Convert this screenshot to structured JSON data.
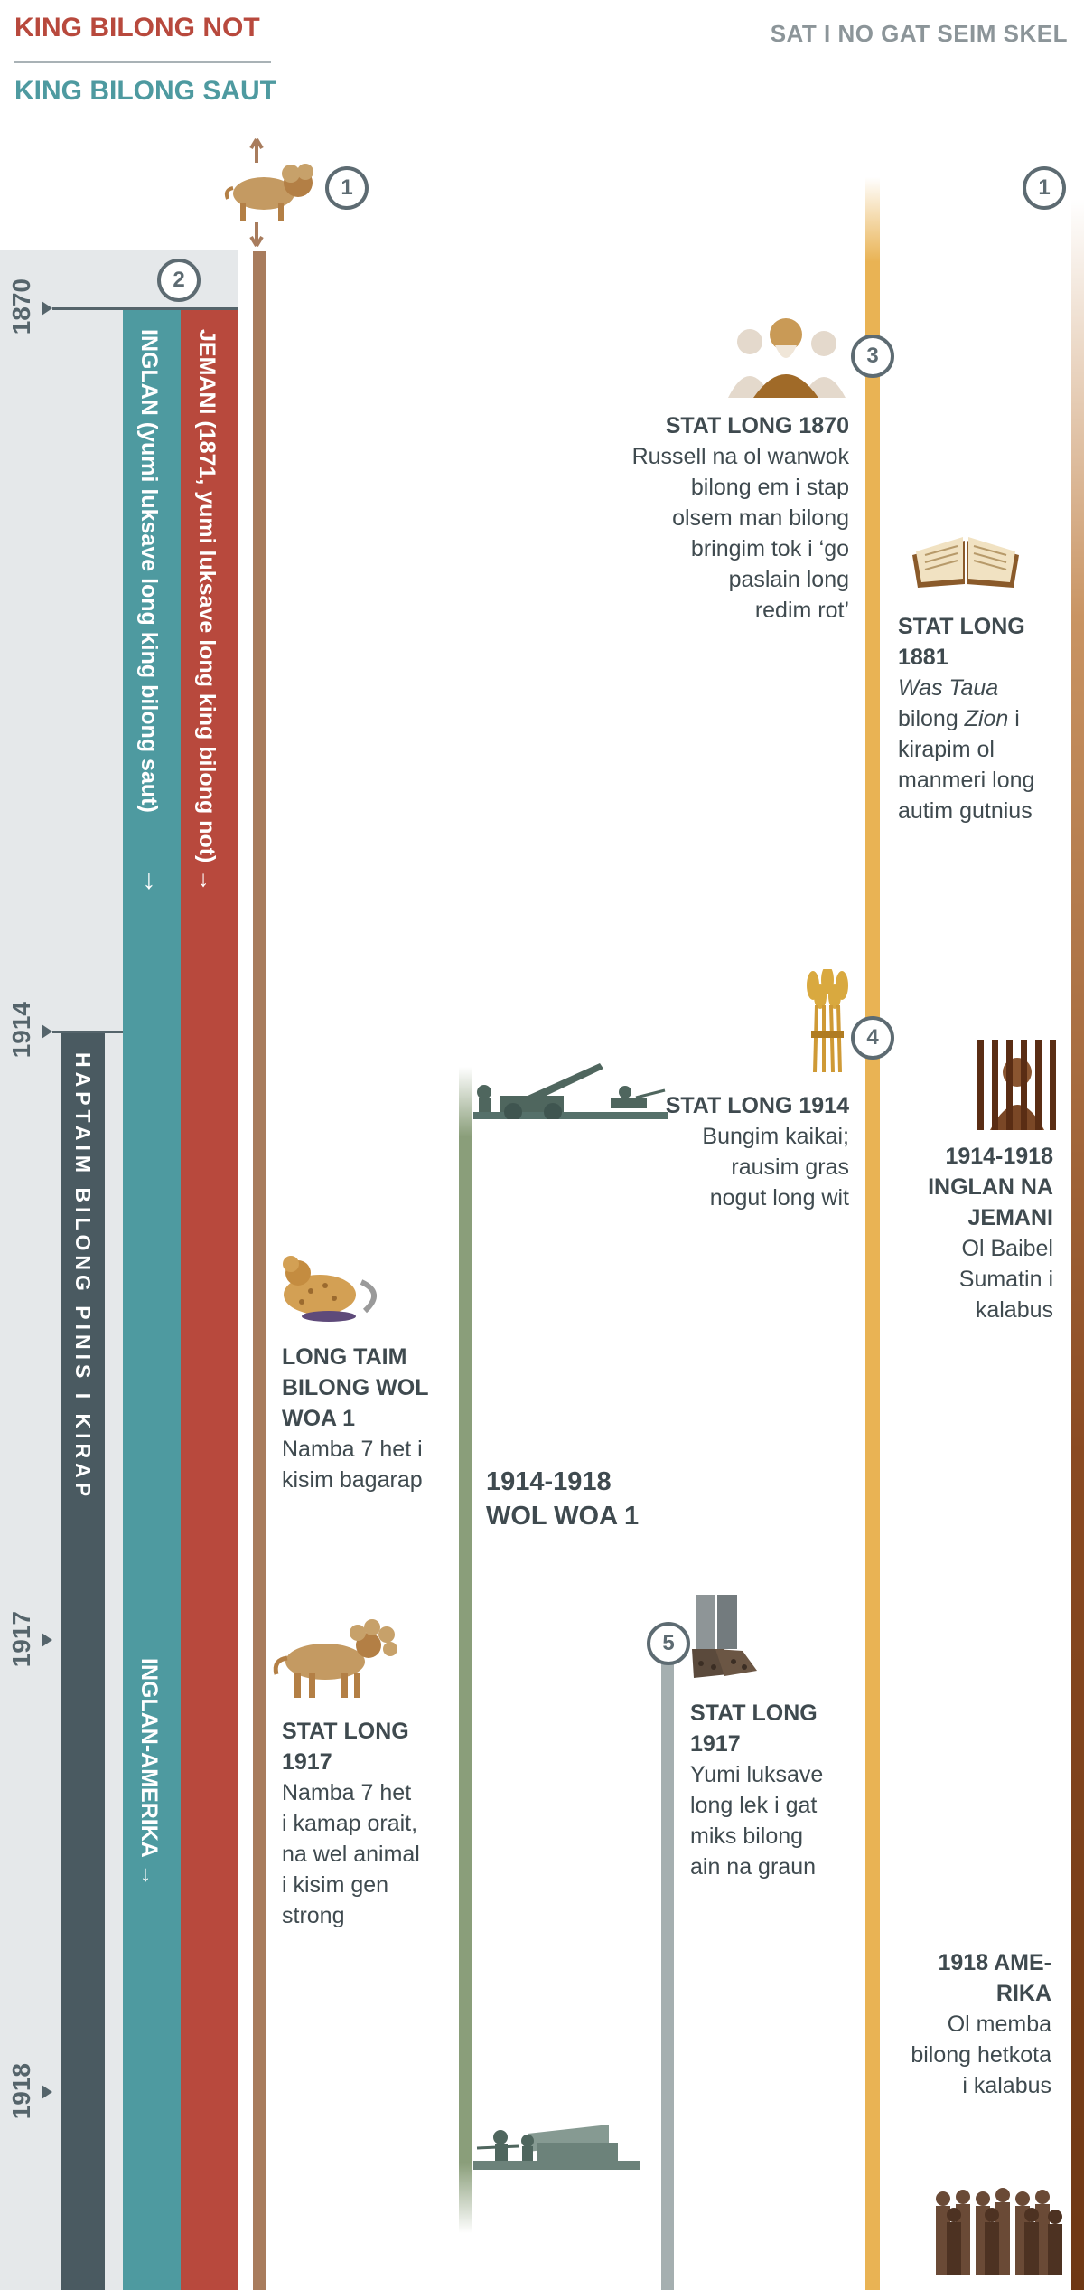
{
  "header": {
    "king_north": "KING BILONG NOT",
    "king_south": "KING BILONG SAUT",
    "note": "SAT I NO GAT SEIM SKEL"
  },
  "colors": {
    "north_red": "#b8493d",
    "south_teal": "#4e9aa0",
    "slate": "#4a5a61",
    "beast_brown": "#a87c5d",
    "ww1_green": "#8a9e7a",
    "gold": "#e9b354",
    "iron_gray": "#a5afb0",
    "bible_brown": "#8a4a22"
  },
  "markers": [
    "1",
    "2",
    "3",
    "4",
    "5"
  ],
  "years": [
    "1870",
    "1914",
    "1917",
    "1918"
  ],
  "bars": {
    "jemani": "JEMANI (1871, yumi luksave long king bilong not)",
    "inglan": "INGLAN (yumi luksave long king bilong saut)",
    "inglan_amerika": "INGLAN-AMERIKA",
    "haptaim": "HAPTAIM BILONG PINIS I KIRAP",
    "arrow": "→"
  },
  "events": {
    "e1870": {
      "title": "STAT LONG 1870",
      "line1": "Russell na ol wanwok",
      "line2": "bilong em i stap",
      "line3": "olsem man bilong",
      "line4": "bringim tok i ‘go",
      "line5": "paslain long",
      "line6": "redim rot’"
    },
    "e1881": {
      "title1": "STAT LONG",
      "title2": "1881",
      "italic1": "Was Taua",
      "text1": "bilong ",
      "italic2": "Zion",
      "text2": " i",
      "line3": "kirapim ol",
      "line4": "manmeri long",
      "line5": "autim gutnius"
    },
    "e1914": {
      "title": "STAT LONG 1914",
      "line1": "Bungim kaikai;",
      "line2": "rausim gras",
      "line3": "nogut long wit"
    },
    "e1914_1918_ig": {
      "title1": "1914-1918",
      "title2": "INGLAN NA",
      "title3": "JEMANI",
      "line1": "Ol Baibel",
      "line2": "Sumatin i",
      "line3": "kalabus"
    },
    "longtaim": {
      "title1": "LONG TAIM",
      "title2": "BILONG WOL",
      "title3": "WOA 1",
      "line1": "Namba 7 het i",
      "line2": "kisim bagarap"
    },
    "ww1": {
      "title1": "1914-1918",
      "title2": "WOL WOA 1"
    },
    "beast1917": {
      "title1": "STAT LONG",
      "title2": "1917",
      "line1": "Namba 7 het",
      "line2": "i kamap orait,",
      "line3": "na wel animal",
      "line4": "i kisim gen",
      "line5": "strong"
    },
    "feet1917": {
      "title1": "STAT LONG",
      "title2": "1917",
      "line1": "Yumi luksave",
      "line2": "long lek i gat",
      "line3": "miks bilong",
      "line4": "ain na graun"
    },
    "am1918": {
      "title1": "1918 AME-",
      "title2": "RIKA",
      "line1": "Ol memba",
      "line2": "bilong hetkota",
      "line3": "i kalabus"
    }
  },
  "icons": [
    "lion-beast-icon",
    "russell-portrait-icon",
    "open-bible-icon",
    "wheat-sheaf-icon",
    "prison-bars-icon",
    "soldiers-cannon-icon",
    "wounded-beast-icon",
    "healed-beast-icon",
    "iron-clay-feet-icon",
    "prisoners-group-icon"
  ]
}
